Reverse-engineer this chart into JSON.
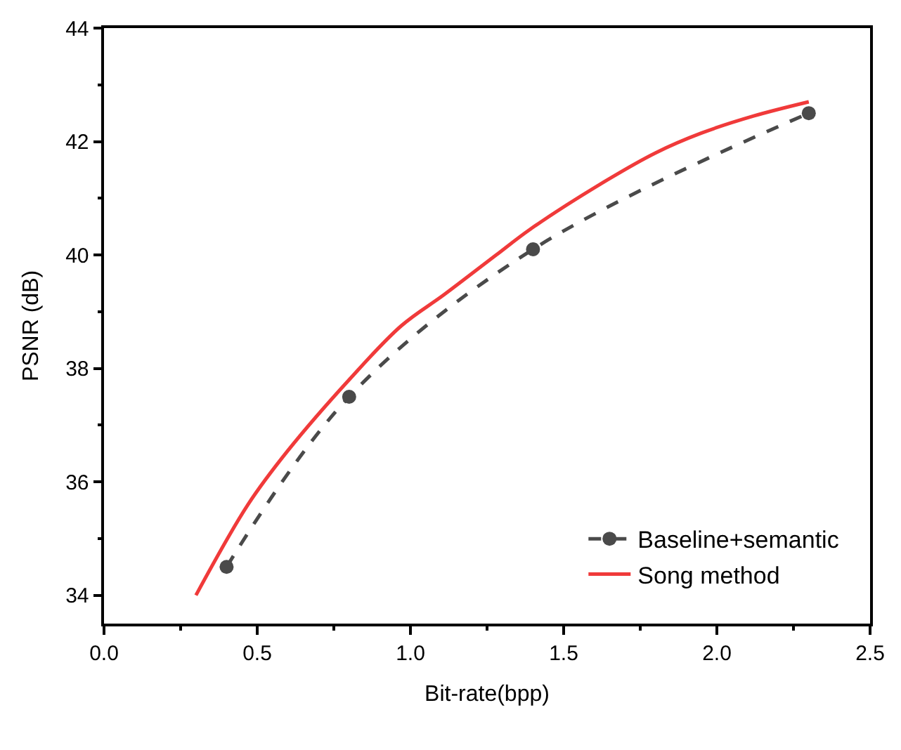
{
  "chart_data": {
    "type": "line",
    "xlabel": "Bit-rate(bpp)",
    "ylabel": "PSNR (dB)",
    "xlim": [
      0,
      2.5
    ],
    "xticks": [
      {
        "value": 0,
        "label": "0.0"
      },
      0.5,
      {
        "value": 1,
        "label": "1.0"
      },
      1.5,
      {
        "value": 2,
        "label": "2.0"
      },
      2.5
    ],
    "ylim": [
      33.5,
      44
    ],
    "yticks": [
      34,
      36,
      38,
      40,
      42,
      44
    ],
    "legend": "bottom right",
    "series": [
      {
        "name": "Baseline+semantic",
        "color": "#4a4a4a",
        "marker": "circle",
        "line_style": "dashed",
        "x": [
          0.4,
          0.8,
          1.4,
          2.3
        ],
        "values": [
          34.5,
          37.5,
          40.1,
          42.5
        ]
      },
      {
        "name": "Song method",
        "color": "#f03a3a",
        "marker": "none",
        "line_style": "solid",
        "x": [
          0.3,
          0.47,
          0.6,
          0.8,
          0.97,
          1.11,
          1.28,
          1.39,
          1.62,
          1.8,
          1.95,
          2.12,
          2.3
        ],
        "values": [
          34.0,
          35.6,
          36.55,
          37.8,
          38.75,
          39.3,
          40.0,
          40.45,
          41.25,
          41.8,
          42.15,
          42.45,
          42.7
        ]
      }
    ]
  }
}
